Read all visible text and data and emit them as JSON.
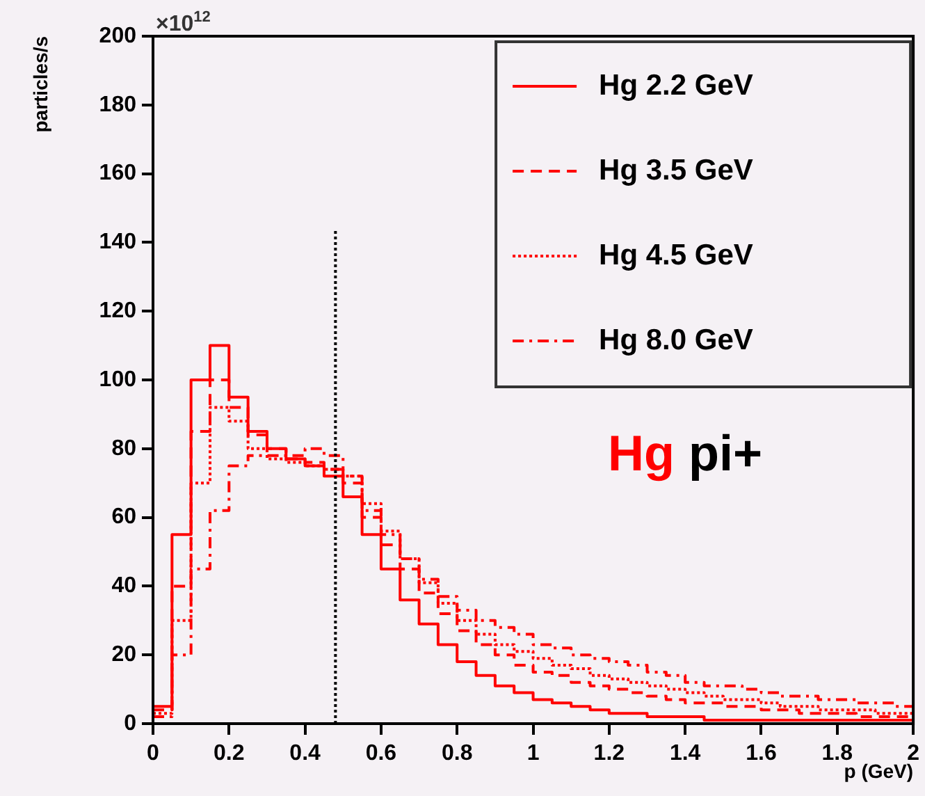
{
  "chart_data": {
    "type": "histogram",
    "xlabel": "p (GeV)",
    "ylabel": "particles/s",
    "annotations": [
      "×10$^{12}$",
      "Hg",
      "pi+"
    ],
    "bins": [
      0,
      0.05,
      0.1,
      0.15,
      0.2,
      0.25,
      0.3,
      0.35,
      0.4,
      0.45,
      0.5,
      0.55,
      0.6,
      0.65,
      0.7,
      0.75,
      0.8,
      0.85,
      0.9,
      0.95,
      1.0,
      1.05,
      1.1,
      1.15,
      1.2,
      1.25,
      1.3,
      1.35,
      1.4,
      1.45,
      1.5,
      1.55,
      1.6,
      1.65,
      1.7,
      1.75,
      1.8,
      1.85,
      1.9,
      1.95,
      2.0
    ],
    "series": [
      {
        "name": "Hg 2.2 GeV",
        "color": "#ff0000",
        "line_style": "solid",
        "values": [
          5,
          55,
          100,
          110,
          95,
          85,
          80,
          77,
          75,
          72,
          66,
          55,
          45,
          36,
          29,
          23,
          18,
          14,
          11,
          9,
          7,
          6,
          5,
          4,
          3,
          3,
          2,
          2,
          2,
          1,
          1,
          1,
          1,
          1,
          1,
          1,
          1,
          1,
          1,
          1
        ]
      },
      {
        "name": "Hg 3.5 GeV",
        "color": "#ff0000",
        "line_style": "dashed",
        "values": [
          4,
          40,
          85,
          100,
          92,
          84,
          80,
          77,
          76,
          74,
          70,
          60,
          52,
          45,
          38,
          32,
          27,
          23,
          20,
          17,
          15,
          14,
          12,
          11,
          10,
          9,
          8,
          7,
          6,
          6,
          5,
          5,
          4,
          4,
          3,
          3,
          3,
          2,
          2,
          2
        ]
      },
      {
        "name": "Hg 4.5 GeV",
        "color": "#ff0000",
        "line_style": "dotted",
        "values": [
          3,
          30,
          70,
          92,
          88,
          80,
          77,
          76,
          75,
          74,
          72,
          64,
          56,
          48,
          41,
          35,
          30,
          26,
          23,
          21,
          19,
          17,
          16,
          14,
          13,
          12,
          11,
          10,
          9,
          8,
          7,
          7,
          6,
          5,
          5,
          4,
          4,
          4,
          3,
          3
        ]
      },
      {
        "name": "Hg 8.0 GeV",
        "color": "#ff0000",
        "line_style": "dashdot",
        "values": [
          2,
          20,
          45,
          62,
          75,
          78,
          78,
          78,
          80,
          78,
          72,
          62,
          55,
          48,
          42,
          37,
          33,
          30,
          28,
          26,
          23,
          22,
          20,
          19,
          18,
          17,
          15,
          14,
          12,
          11,
          11,
          10,
          9,
          8,
          8,
          7,
          7,
          6,
          6,
          5
        ]
      }
    ],
    "xlim": [
      0,
      2
    ],
    "xticks": [
      0,
      0.2,
      0.4,
      0.6,
      0.8,
      1,
      1.2,
      1.4,
      1.6,
      1.8,
      2
    ],
    "ylim": [
      0,
      200
    ],
    "yticks": [
      0,
      20,
      40,
      60,
      80,
      100,
      120,
      140,
      160,
      180,
      200
    ],
    "ref_lines": [
      {
        "axis": "x",
        "value": 0.48,
        "color": "#000000",
        "line_style": "dotted"
      }
    ],
    "grid": false,
    "legend": "top right"
  }
}
